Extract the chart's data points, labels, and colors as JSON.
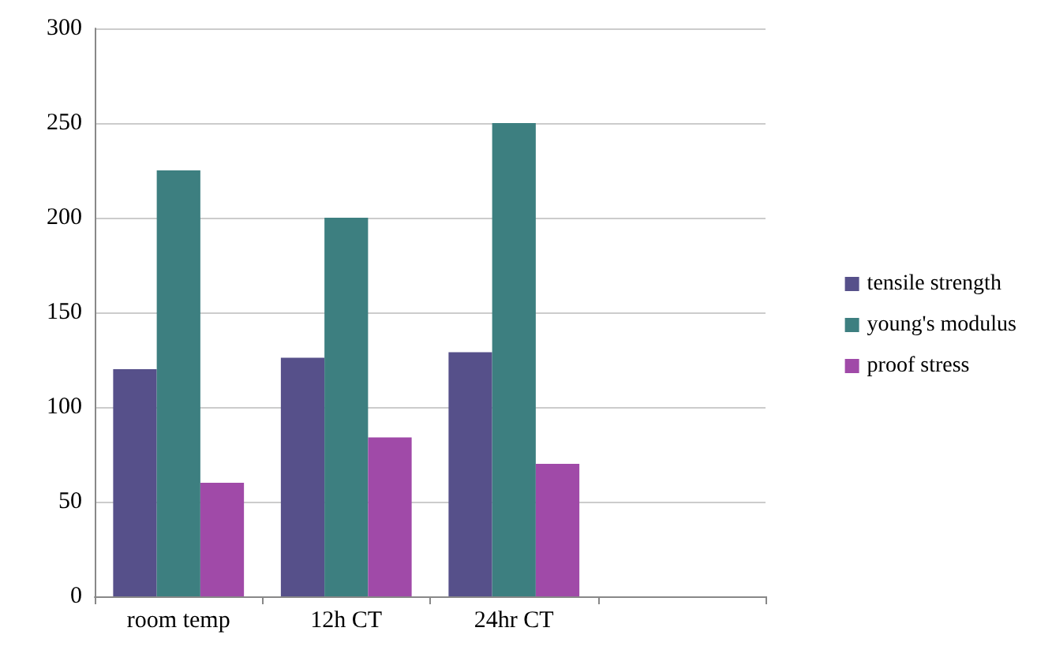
{
  "chart_data": {
    "type": "bar",
    "categories": [
      "room temp",
      "12h CT",
      "24hr CT",
      null
    ],
    "series": [
      {
        "name": "tensile strength",
        "color": "#56508a",
        "values": [
          120,
          126,
          129,
          null
        ]
      },
      {
        "name": "young's modulus",
        "color": "#3d7f80",
        "values": [
          225,
          200,
          250,
          null
        ]
      },
      {
        "name": "proof stress",
        "color": "#a04aa8",
        "values": [
          60,
          84,
          70,
          null
        ]
      }
    ],
    "ylim": [
      0,
      300
    ],
    "yticks": [
      0,
      50,
      100,
      150,
      200,
      250,
      300
    ],
    "grid": "y",
    "legend": "right"
  }
}
